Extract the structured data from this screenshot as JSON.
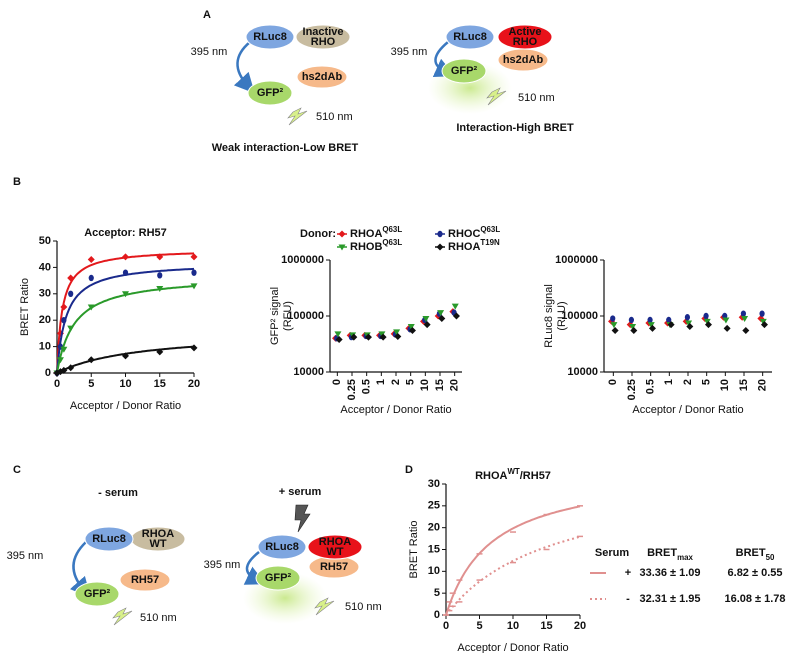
{
  "panel_labels": [
    "A",
    "B",
    "C",
    "D"
  ],
  "diagram_a": {
    "left": {
      "donor": "RLuc8",
      "target": [
        "Inactive",
        "RHO"
      ],
      "gfp": "GFP²",
      "binder": "hs2dAb",
      "excitation": "395 nm",
      "emission": "510 nm",
      "caption": "Weak interaction-Low BRET"
    },
    "right": {
      "donor": "RLuc8",
      "target": [
        "Active",
        "RHO"
      ],
      "gfp": "GFP²",
      "binder": "hs2dAb",
      "excitation": "395 nm",
      "emission": "510 nm",
      "caption": "Interaction-High BRET"
    }
  },
  "diagram_c": {
    "left": {
      "condition": "- serum",
      "donor": "RLuc8",
      "target": [
        "RHOA",
        "WT"
      ],
      "gfp": "GFP²",
      "binder": "RH57",
      "excitation": "395 nm",
      "emission": "510 nm"
    },
    "right": {
      "condition": "+ serum",
      "donor": "RLuc8",
      "target": [
        "RHOA",
        "WT"
      ],
      "gfp": "GFP²",
      "binder": "RH57",
      "excitation": "395 nm",
      "emission": "510 nm"
    }
  },
  "chart_data": [
    {
      "type": "scatter",
      "title": "Acceptor: RH57",
      "xlabel": "Acceptor / Donor Ratio",
      "ylabel": [
        "BRET Ratio"
      ],
      "x": [
        0,
        0.5,
        1,
        2,
        5,
        10,
        15,
        20
      ],
      "xlim": [
        0,
        20
      ],
      "xticks": [
        0,
        5,
        10,
        15,
        20
      ],
      "ylim": [
        0,
        50
      ],
      "yticks": [
        0,
        10,
        20,
        30,
        40,
        50
      ],
      "series": [
        {
          "name": "RHOA",
          "name_sup": "Q63L",
          "color": "#e3191c",
          "marker": "diamond",
          "values": [
            0,
            15,
            25,
            36,
            43,
            44,
            44,
            44
          ],
          "fit": {
            "bmax": 47,
            "b50": 0.75
          }
        },
        {
          "name": "RHOC",
          "name_sup": "Q63L",
          "color": "#1a2a8c",
          "marker": "circle",
          "values": [
            0,
            10,
            20,
            30,
            36,
            38,
            37,
            38
          ],
          "fit": {
            "bmax": 42,
            "b50": 1.3
          }
        },
        {
          "name": "RHOB",
          "name_sup": "Q63L",
          "color": "#2a9a2a",
          "marker": "triangle",
          "values": [
            0,
            5,
            9,
            17,
            25,
            30,
            32,
            33
          ],
          "fit": {
            "bmax": 37,
            "b50": 2.5
          }
        },
        {
          "name": "RHOA",
          "name_sup": "T19N",
          "color": "#111111",
          "marker": "diamond",
          "values": [
            0,
            0.5,
            1,
            2,
            5,
            6.5,
            8,
            9.5
          ],
          "fit": {
            "bmax": 16,
            "b50": 12
          }
        }
      ]
    },
    {
      "type": "scatter",
      "legend_title": "Donor:",
      "xlabel": "Acceptor / Donor Ratio",
      "ylabel": [
        "GFP² signal",
        "(RFU)"
      ],
      "log_y": true,
      "categories": [
        "0",
        "0.25",
        "0.5",
        "1",
        "2",
        "5",
        "10",
        "15",
        "20"
      ],
      "ylim": [
        10000,
        1000000
      ],
      "yticks": [
        10000,
        100000,
        1000000
      ],
      "series": [
        {
          "name": "RHOA",
          "name_sup": "Q63L",
          "color": "#e3191c",
          "marker": "diamond",
          "values": [
            40000,
            45000,
            45000,
            45000,
            48000,
            60000,
            80000,
            100000,
            120000
          ]
        },
        {
          "name": "RHOC",
          "name_sup": "Q63L",
          "color": "#1a2a8c",
          "marker": "circle",
          "values": [
            40000,
            42000,
            44000,
            44000,
            47000,
            58000,
            85000,
            110000,
            115000
          ]
        },
        {
          "name": "RHOB",
          "name_sup": "Q63L",
          "color": "#2a9a2a",
          "marker": "triangle",
          "values": [
            48000,
            46000,
            46000,
            48000,
            52000,
            65000,
            90000,
            115000,
            150000
          ]
        },
        {
          "name": "RHOA",
          "name_sup": "T19N",
          "color": "#111111",
          "marker": "diamond",
          "values": [
            38000,
            42000,
            42000,
            42000,
            43000,
            55000,
            70000,
            90000,
            100000
          ]
        }
      ]
    },
    {
      "type": "scatter",
      "xlabel": "Acceptor / Donor Ratio",
      "ylabel": [
        "RLuc8 signal",
        "(RLU)"
      ],
      "log_y": true,
      "categories": [
        "0",
        "0.25",
        "0.5",
        "1",
        "2",
        "5",
        "10",
        "15",
        "20"
      ],
      "ylim": [
        10000,
        1000000
      ],
      "yticks": [
        10000,
        100000,
        1000000
      ],
      "series": [
        {
          "name": "RHOA",
          "name_sup": "Q63L",
          "color": "#e3191c",
          "marker": "diamond",
          "values": [
            80000,
            70000,
            75000,
            75000,
            80000,
            90000,
            95000,
            95000,
            90000
          ]
        },
        {
          "name": "RHOC",
          "name_sup": "Q63L",
          "color": "#1a2a8c",
          "marker": "circle",
          "values": [
            90000,
            85000,
            85000,
            85000,
            95000,
            100000,
            100000,
            110000,
            110000
          ]
        },
        {
          "name": "RHOB",
          "name_sup": "Q63L",
          "color": "#2a9a2a",
          "marker": "triangle",
          "values": [
            70000,
            65000,
            70000,
            70000,
            75000,
            80000,
            85000,
            90000,
            80000
          ]
        },
        {
          "name": "RHOA",
          "name_sup": "T19N",
          "color": "#111111",
          "marker": "diamond",
          "values": [
            55000,
            55000,
            60000,
            70000,
            65000,
            70000,
            60000,
            55000,
            70000
          ]
        }
      ]
    },
    {
      "type": "scatter",
      "title": "RHOA",
      "title_sup": "WT",
      "title_end": "/RH57",
      "xlabel": "Acceptor / Donor Ratio",
      "ylabel": [
        "BRET Ratio"
      ],
      "x": [
        0,
        0.5,
        1,
        2,
        5,
        10,
        15,
        20
      ],
      "xlim": [
        0,
        20
      ],
      "xticks": [
        0,
        5,
        10,
        15,
        20
      ],
      "ylim": [
        0,
        30
      ],
      "yticks": [
        0,
        5,
        10,
        15,
        20,
        25,
        30
      ],
      "series": [
        {
          "name": "+",
          "color": "#e0908f",
          "marker": "dash",
          "values": [
            0,
            3,
            5,
            8,
            14,
            19,
            23,
            25
          ],
          "fit": {
            "bmax": 33.36,
            "b50": 6.82
          }
        },
        {
          "name": "-",
          "color": "#e0908f",
          "marker": "dash",
          "dotted": true,
          "values": [
            0,
            1,
            2,
            3,
            8,
            12,
            15,
            18
          ],
          "fit": {
            "bmax": 32.31,
            "b50": 16.08
          }
        }
      ]
    }
  ],
  "table_d": {
    "headers": [
      {
        "text": "Serum"
      },
      {
        "text": "BRET",
        "sub": "max"
      },
      {
        "text": "BRET",
        "sub": "50"
      }
    ],
    "rows": [
      [
        "33.36 ± 1.09",
        "6.82 ± 0.55"
      ],
      [
        "32.31 ± 1.95",
        "16.08 ± 1.78"
      ]
    ]
  }
}
